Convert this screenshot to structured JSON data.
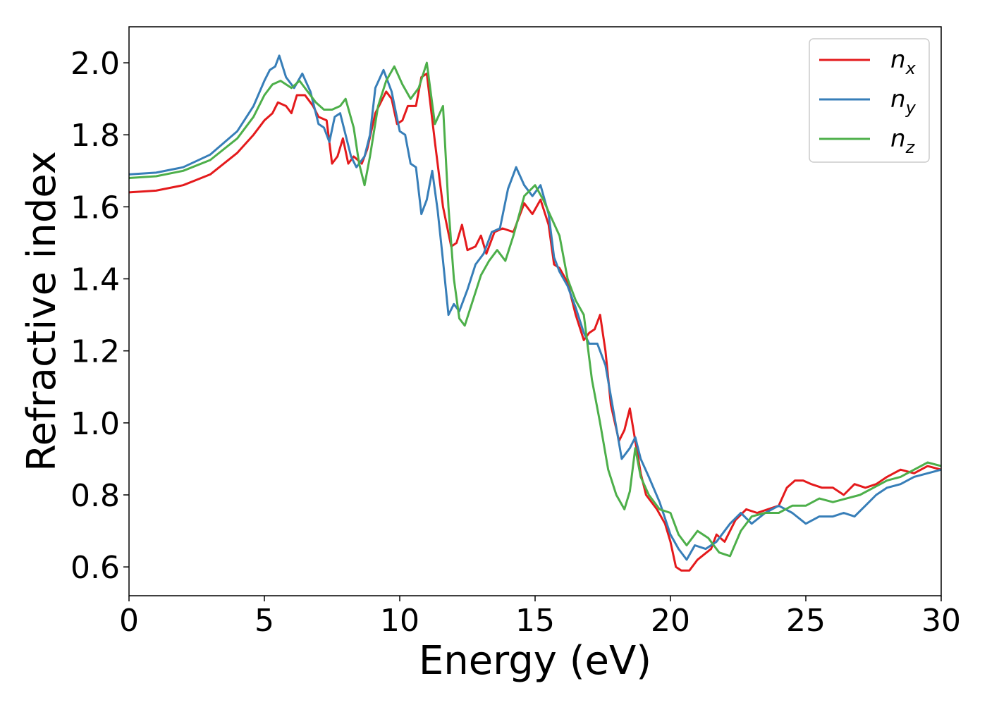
{
  "chart_data": {
    "type": "line",
    "title": "",
    "xlabel": "Energy (eV)",
    "ylabel": "Refractive index",
    "xlim": [
      0,
      30
    ],
    "ylim": [
      0.52,
      2.1
    ],
    "xticks": [
      "0",
      "5",
      "10",
      "15",
      "20",
      "25",
      "30"
    ],
    "yticks": [
      "0.6",
      "0.8",
      "1.0",
      "1.2",
      "1.4",
      "1.6",
      "1.8",
      "2.0"
    ],
    "grid": false,
    "legend_position": "top-right",
    "series": [
      {
        "base": "n",
        "sub": "x",
        "color": "#e41a1c",
        "points": [
          [
            0,
            1.64
          ],
          [
            1,
            1.645
          ],
          [
            2,
            1.66
          ],
          [
            3,
            1.69
          ],
          [
            4,
            1.75
          ],
          [
            4.6,
            1.8
          ],
          [
            5,
            1.84
          ],
          [
            5.3,
            1.86
          ],
          [
            5.5,
            1.89
          ],
          [
            5.8,
            1.88
          ],
          [
            6,
            1.86
          ],
          [
            6.2,
            1.91
          ],
          [
            6.5,
            1.91
          ],
          [
            6.8,
            1.88
          ],
          [
            7,
            1.85
          ],
          [
            7.3,
            1.84
          ],
          [
            7.5,
            1.72
          ],
          [
            7.7,
            1.74
          ],
          [
            7.9,
            1.79
          ],
          [
            8.1,
            1.72
          ],
          [
            8.3,
            1.74
          ],
          [
            8.6,
            1.72
          ],
          [
            8.8,
            1.76
          ],
          [
            9.1,
            1.86
          ],
          [
            9.5,
            1.92
          ],
          [
            9.7,
            1.9
          ],
          [
            9.9,
            1.83
          ],
          [
            10.1,
            1.84
          ],
          [
            10.3,
            1.88
          ],
          [
            10.6,
            1.88
          ],
          [
            10.8,
            1.96
          ],
          [
            11,
            1.97
          ],
          [
            11.3,
            1.78
          ],
          [
            11.6,
            1.6
          ],
          [
            11.9,
            1.49
          ],
          [
            12.1,
            1.5
          ],
          [
            12.3,
            1.55
          ],
          [
            12.5,
            1.48
          ],
          [
            12.8,
            1.49
          ],
          [
            13,
            1.52
          ],
          [
            13.2,
            1.47
          ],
          [
            13.5,
            1.53
          ],
          [
            13.8,
            1.54
          ],
          [
            14.2,
            1.53
          ],
          [
            14.6,
            1.61
          ],
          [
            14.9,
            1.58
          ],
          [
            15.2,
            1.62
          ],
          [
            15.5,
            1.55
          ],
          [
            15.7,
            1.44
          ],
          [
            15.9,
            1.43
          ],
          [
            16.2,
            1.39
          ],
          [
            16.5,
            1.3
          ],
          [
            16.8,
            1.23
          ],
          [
            17,
            1.25
          ],
          [
            17.2,
            1.26
          ],
          [
            17.4,
            1.3
          ],
          [
            17.6,
            1.2
          ],
          [
            17.8,
            1.05
          ],
          [
            18.1,
            0.95
          ],
          [
            18.3,
            0.98
          ],
          [
            18.5,
            1.04
          ],
          [
            18.7,
            0.95
          ],
          [
            18.9,
            0.86
          ],
          [
            19.1,
            0.8
          ],
          [
            19.5,
            0.76
          ],
          [
            19.8,
            0.72
          ],
          [
            20,
            0.67
          ],
          [
            20.2,
            0.6
          ],
          [
            20.4,
            0.59
          ],
          [
            20.7,
            0.59
          ],
          [
            21,
            0.62
          ],
          [
            21.5,
            0.65
          ],
          [
            21.7,
            0.69
          ],
          [
            22,
            0.67
          ],
          [
            22.4,
            0.73
          ],
          [
            22.8,
            0.76
          ],
          [
            23.2,
            0.75
          ],
          [
            23.6,
            0.76
          ],
          [
            24,
            0.77
          ],
          [
            24.3,
            0.82
          ],
          [
            24.6,
            0.84
          ],
          [
            24.9,
            0.84
          ],
          [
            25.2,
            0.83
          ],
          [
            25.6,
            0.82
          ],
          [
            26,
            0.82
          ],
          [
            26.4,
            0.8
          ],
          [
            26.8,
            0.83
          ],
          [
            27.2,
            0.82
          ],
          [
            27.6,
            0.83
          ],
          [
            28,
            0.85
          ],
          [
            28.5,
            0.87
          ],
          [
            29,
            0.86
          ],
          [
            29.5,
            0.88
          ],
          [
            30,
            0.87
          ]
        ]
      },
      {
        "base": "n",
        "sub": "y",
        "color": "#377eb8",
        "points": [
          [
            0,
            1.69
          ],
          [
            1,
            1.695
          ],
          [
            2,
            1.71
          ],
          [
            3,
            1.745
          ],
          [
            4,
            1.81
          ],
          [
            4.6,
            1.88
          ],
          [
            5,
            1.95
          ],
          [
            5.2,
            1.98
          ],
          [
            5.4,
            1.99
          ],
          [
            5.55,
            2.02
          ],
          [
            5.8,
            1.96
          ],
          [
            6.1,
            1.93
          ],
          [
            6.4,
            1.97
          ],
          [
            6.7,
            1.92
          ],
          [
            7,
            1.83
          ],
          [
            7.2,
            1.82
          ],
          [
            7.4,
            1.78
          ],
          [
            7.6,
            1.85
          ],
          [
            7.8,
            1.86
          ],
          [
            8,
            1.8
          ],
          [
            8.2,
            1.74
          ],
          [
            8.4,
            1.71
          ],
          [
            8.7,
            1.74
          ],
          [
            8.9,
            1.8
          ],
          [
            9.1,
            1.93
          ],
          [
            9.4,
            1.98
          ],
          [
            9.7,
            1.92
          ],
          [
            10,
            1.81
          ],
          [
            10.2,
            1.8
          ],
          [
            10.4,
            1.72
          ],
          [
            10.6,
            1.71
          ],
          [
            10.8,
            1.58
          ],
          [
            11,
            1.62
          ],
          [
            11.2,
            1.7
          ],
          [
            11.4,
            1.59
          ],
          [
            11.6,
            1.45
          ],
          [
            11.8,
            1.3
          ],
          [
            12,
            1.33
          ],
          [
            12.2,
            1.31
          ],
          [
            12.5,
            1.37
          ],
          [
            12.8,
            1.44
          ],
          [
            13.1,
            1.47
          ],
          [
            13.4,
            1.53
          ],
          [
            13.7,
            1.54
          ],
          [
            14,
            1.65
          ],
          [
            14.3,
            1.71
          ],
          [
            14.6,
            1.66
          ],
          [
            14.9,
            1.63
          ],
          [
            15.2,
            1.66
          ],
          [
            15.5,
            1.58
          ],
          [
            15.7,
            1.46
          ],
          [
            15.9,
            1.42
          ],
          [
            16.2,
            1.38
          ],
          [
            16.5,
            1.32
          ],
          [
            16.8,
            1.25
          ],
          [
            17,
            1.22
          ],
          [
            17.3,
            1.22
          ],
          [
            17.6,
            1.16
          ],
          [
            17.9,
            1.03
          ],
          [
            18.2,
            0.9
          ],
          [
            18.5,
            0.93
          ],
          [
            18.7,
            0.96
          ],
          [
            18.9,
            0.9
          ],
          [
            19.2,
            0.85
          ],
          [
            19.6,
            0.78
          ],
          [
            20,
            0.69
          ],
          [
            20.3,
            0.65
          ],
          [
            20.6,
            0.62
          ],
          [
            20.9,
            0.66
          ],
          [
            21.3,
            0.65
          ],
          [
            21.7,
            0.67
          ],
          [
            22.2,
            0.72
          ],
          [
            22.6,
            0.75
          ],
          [
            23,
            0.72
          ],
          [
            23.5,
            0.75
          ],
          [
            24,
            0.77
          ],
          [
            24.5,
            0.75
          ],
          [
            25,
            0.72
          ],
          [
            25.5,
            0.74
          ],
          [
            26,
            0.74
          ],
          [
            26.4,
            0.75
          ],
          [
            26.8,
            0.74
          ],
          [
            27.2,
            0.77
          ],
          [
            27.6,
            0.8
          ],
          [
            28,
            0.82
          ],
          [
            28.5,
            0.83
          ],
          [
            29,
            0.85
          ],
          [
            29.5,
            0.86
          ],
          [
            30,
            0.87
          ]
        ]
      },
      {
        "base": "n",
        "sub": "z",
        "color": "#4daf4a",
        "points": [
          [
            0,
            1.68
          ],
          [
            1,
            1.685
          ],
          [
            2,
            1.7
          ],
          [
            3,
            1.73
          ],
          [
            4,
            1.79
          ],
          [
            4.6,
            1.85
          ],
          [
            5,
            1.91
          ],
          [
            5.3,
            1.94
          ],
          [
            5.6,
            1.95
          ],
          [
            6,
            1.93
          ],
          [
            6.3,
            1.95
          ],
          [
            6.6,
            1.92
          ],
          [
            6.9,
            1.89
          ],
          [
            7.2,
            1.87
          ],
          [
            7.5,
            1.87
          ],
          [
            7.8,
            1.88
          ],
          [
            8,
            1.9
          ],
          [
            8.3,
            1.82
          ],
          [
            8.5,
            1.72
          ],
          [
            8.7,
            1.66
          ],
          [
            8.9,
            1.74
          ],
          [
            9.2,
            1.88
          ],
          [
            9.5,
            1.95
          ],
          [
            9.8,
            1.99
          ],
          [
            10.1,
            1.94
          ],
          [
            10.4,
            1.9
          ],
          [
            10.7,
            1.93
          ],
          [
            11,
            2.0
          ],
          [
            11.3,
            1.83
          ],
          [
            11.6,
            1.88
          ],
          [
            11.8,
            1.6
          ],
          [
            12,
            1.4
          ],
          [
            12.2,
            1.29
          ],
          [
            12.4,
            1.27
          ],
          [
            12.7,
            1.34
          ],
          [
            13,
            1.41
          ],
          [
            13.3,
            1.45
          ],
          [
            13.6,
            1.48
          ],
          [
            13.9,
            1.45
          ],
          [
            14.2,
            1.52
          ],
          [
            14.6,
            1.63
          ],
          [
            15,
            1.66
          ],
          [
            15.3,
            1.62
          ],
          [
            15.6,
            1.57
          ],
          [
            15.9,
            1.52
          ],
          [
            16.2,
            1.4
          ],
          [
            16.5,
            1.34
          ],
          [
            16.8,
            1.3
          ],
          [
            17.1,
            1.12
          ],
          [
            17.4,
            1.0
          ],
          [
            17.7,
            0.87
          ],
          [
            18,
            0.8
          ],
          [
            18.3,
            0.76
          ],
          [
            18.5,
            0.81
          ],
          [
            18.7,
            0.93
          ],
          [
            18.9,
            0.85
          ],
          [
            19.2,
            0.8
          ],
          [
            19.6,
            0.76
          ],
          [
            20,
            0.75
          ],
          [
            20.3,
            0.69
          ],
          [
            20.6,
            0.66
          ],
          [
            21,
            0.7
          ],
          [
            21.4,
            0.68
          ],
          [
            21.8,
            0.64
          ],
          [
            22.2,
            0.63
          ],
          [
            22.6,
            0.7
          ],
          [
            23,
            0.74
          ],
          [
            23.5,
            0.75
          ],
          [
            24,
            0.75
          ],
          [
            24.5,
            0.77
          ],
          [
            25,
            0.77
          ],
          [
            25.5,
            0.79
          ],
          [
            26,
            0.78
          ],
          [
            26.5,
            0.79
          ],
          [
            27,
            0.8
          ],
          [
            27.5,
            0.82
          ],
          [
            28,
            0.84
          ],
          [
            28.5,
            0.85
          ],
          [
            29,
            0.87
          ],
          [
            29.5,
            0.89
          ],
          [
            30,
            0.88
          ]
        ]
      }
    ]
  }
}
